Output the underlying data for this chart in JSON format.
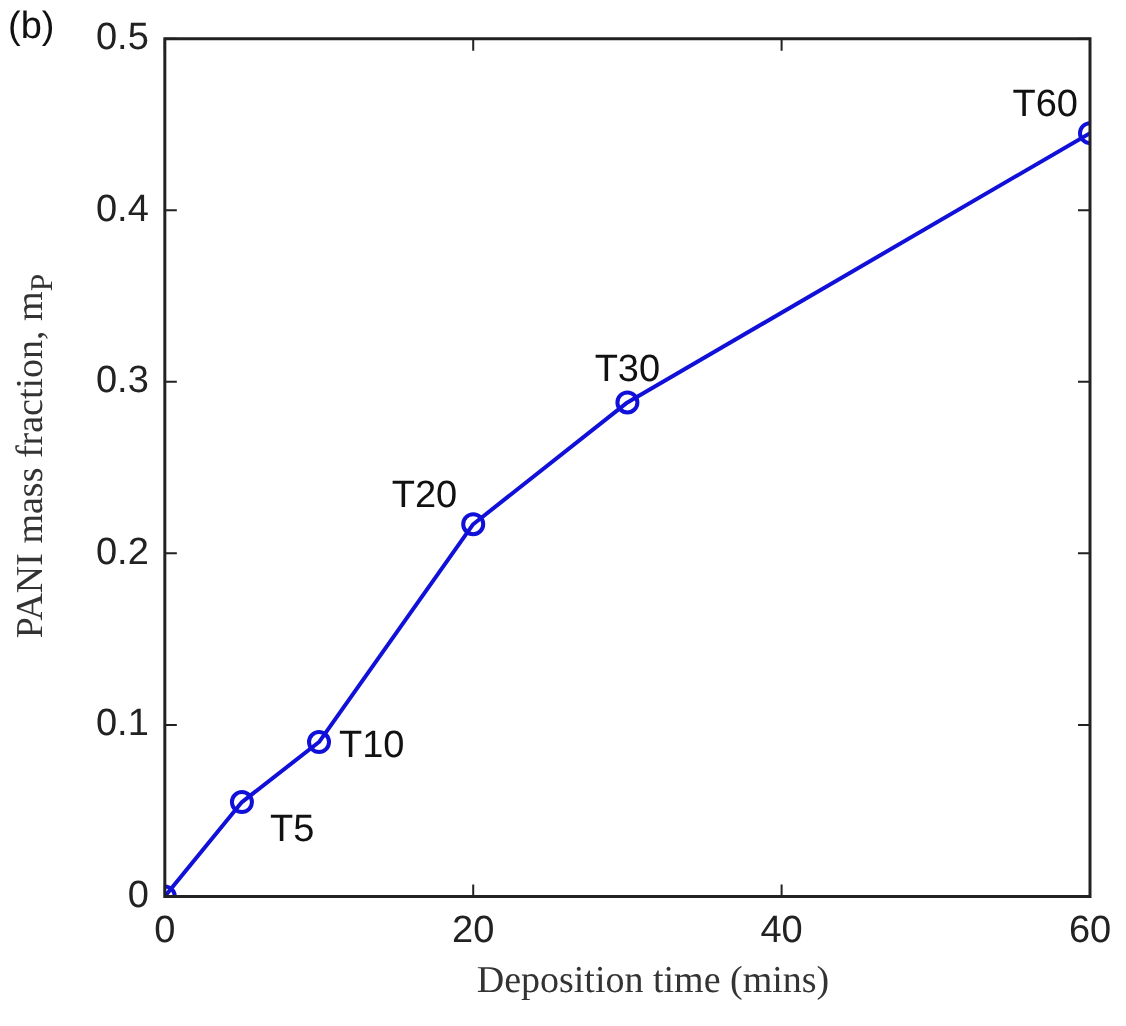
{
  "chart_data": {
    "type": "line",
    "xlabel": "Deposition time (mins)",
    "ylabel": "PANI mass fraction, m$_{P}$",
    "x": [
      0,
      5,
      10,
      20,
      30,
      60
    ],
    "series": [
      {
        "color": "#1010d8",
        "values": [
          0,
          0.055,
          0.09,
          0.217,
          0.288,
          0.445
        ]
      }
    ],
    "xlim": [
      0,
      60
    ],
    "xticks": [
      0,
      20,
      40,
      60
    ],
    "ylim": [
      0,
      0.5
    ],
    "yticks": [
      0,
      0.1,
      0.2,
      0.3,
      0.4,
      0.5
    ],
    "grid": false,
    "legend": false,
    "marker": "circle",
    "line_style": "solid",
    "annotations": [
      "(b)",
      {
        "text": "T5",
        "x": 5,
        "y": 0.055
      },
      {
        "text": "T10",
        "x": 10,
        "y": 0.09
      },
      {
        "text": "T20",
        "x": 20,
        "y": 0.217
      },
      {
        "text": "T30",
        "x": 30,
        "y": 0.288
      },
      {
        "text": "T60",
        "x": 60,
        "y": 0.445
      }
    ]
  }
}
